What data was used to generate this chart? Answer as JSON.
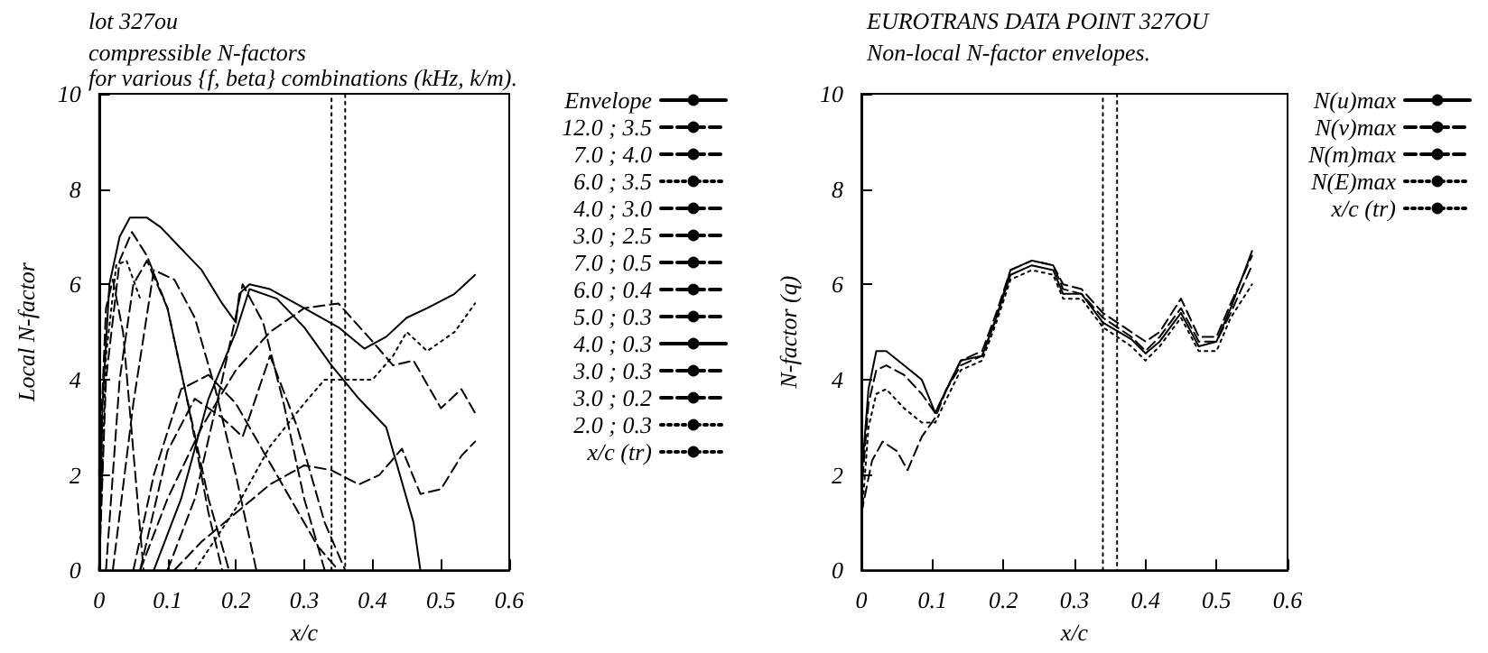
{
  "chart_data": [
    {
      "type": "line",
      "title": "lot 327ou",
      "subtitle": "compressible N-factors\nfor various {f, beta} combinations (kHz, k/m).",
      "xlabel": "x/c",
      "ylabel": "Local N-factor",
      "xlim": [
        0,
        0.6
      ],
      "ylim": [
        0,
        10
      ],
      "xticks": [
        0,
        0.1,
        0.2,
        0.3,
        0.4,
        0.5,
        0.6
      ],
      "yticks": [
        0,
        2,
        4,
        6,
        8,
        10
      ],
      "grid": false,
      "legend": "top right",
      "marker": "none",
      "series": [
        {
          "name": "Envelope",
          "color": "#000000",
          "line_style": "solid",
          "x": [
            0,
            0.005,
            0.015,
            0.03,
            0.045,
            0.07,
            0.09,
            0.11,
            0.13,
            0.15,
            0.18,
            0.2,
            0.205,
            0.22,
            0.25,
            0.3,
            0.35,
            0.388,
            0.42,
            0.45,
            0.48,
            0.52,
            0.55
          ],
          "values": [
            0,
            3.5,
            6,
            7.0,
            7.4,
            7.4,
            7.2,
            6.9,
            6.6,
            6.3,
            5.6,
            5.2,
            5.8,
            6.0,
            5.9,
            5.5,
            5.1,
            4.65,
            4.9,
            5.3,
            5.5,
            5.8,
            6.2
          ]
        },
        {
          "name": "12.0 ; 3.5",
          "color": "#000000",
          "line_style": "dashed",
          "x": [
            0,
            0.01,
            0.02,
            0.035,
            0.05,
            0.065
          ],
          "values": [
            2,
            5.5,
            6.1,
            5,
            2.5,
            0
          ]
        },
        {
          "name": "7.0 ; 4.0",
          "color": "#000000",
          "line_style": "dashed",
          "x": [
            0,
            0.01,
            0.03,
            0.048,
            0.07,
            0.1,
            0.13,
            0.16,
            0.19
          ],
          "values": [
            0,
            4,
            6.5,
            7.1,
            6.6,
            5.5,
            3.5,
            1.5,
            0
          ]
        },
        {
          "name": "6.0 ; 3.5",
          "color": "#000000",
          "line_style": "dotted",
          "x": [
            0,
            0.01,
            0.025,
            0.04,
            0.06
          ],
          "values": [
            0,
            4.5,
            6.4,
            6.5,
            5.7
          ]
        },
        {
          "name": "4.0 ; 3.0",
          "color": "#000000",
          "line_style": "dashed",
          "x": [
            0.01,
            0.03,
            0.05,
            0.07,
            0.1,
            0.13,
            0.16,
            0.18
          ],
          "values": [
            0,
            4,
            6,
            6.5,
            5.5,
            3.5,
            1.2,
            0
          ]
        },
        {
          "name": "3.0 ; 2.5",
          "color": "#000000",
          "line_style": "dashed",
          "x": [
            0.02,
            0.05,
            0.08,
            0.11,
            0.14,
            0.17,
            0.2,
            0.23
          ],
          "values": [
            0,
            3.5,
            6.3,
            6.1,
            5.3,
            3.8,
            2,
            0
          ]
        },
        {
          "name": "7.0 ; 0.5",
          "color": "#000000",
          "line_style": "dashed",
          "x": [
            0.1,
            0.14,
            0.18,
            0.21,
            0.24,
            0.27,
            0.3,
            0.33
          ],
          "values": [
            0,
            1.5,
            4,
            6.0,
            5.2,
            3.5,
            1.5,
            0
          ]
        },
        {
          "name": "6.0 ; 0.4",
          "color": "#000000",
          "line_style": "dashed",
          "x": [
            0.06,
            0.1,
            0.14,
            0.18,
            0.21,
            0.25,
            0.29,
            0.33,
            0.36
          ],
          "values": [
            0,
            2.5,
            3.6,
            3.2,
            2.8,
            4.5,
            3,
            1,
            0
          ]
        },
        {
          "name": "5.0 ; 0.3",
          "color": "#000000",
          "line_style": "dashed",
          "x": [
            0.05,
            0.08,
            0.12,
            0.16,
            0.2,
            0.24,
            0.28,
            0.32,
            0.35
          ],
          "values": [
            0,
            2.0,
            3.8,
            4.1,
            3.5,
            2.5,
            1.5,
            0.5,
            0
          ]
        },
        {
          "name": "4.0 ; 0.3",
          "color": "#000000",
          "line_style": "solid",
          "x": [
            0.08,
            0.12,
            0.16,
            0.2,
            0.22,
            0.26,
            0.3,
            0.34,
            0.38,
            0.42,
            0.46,
            0.47
          ],
          "values": [
            0,
            1.5,
            3.6,
            5.0,
            5.9,
            5.7,
            5.1,
            4.3,
            3.6,
            3.0,
            1.0,
            0
          ]
        },
        {
          "name": "3.0 ; 0.3",
          "color": "#000000",
          "line_style": "dashed",
          "x": [
            0.06,
            0.1,
            0.15,
            0.2,
            0.25,
            0.3,
            0.35,
            0.4,
            0.43,
            0.46,
            0.5,
            0.53,
            0.55
          ],
          "values": [
            0,
            1.5,
            3.0,
            4.2,
            5.0,
            5.5,
            5.6,
            4.8,
            4.3,
            4.4,
            3.4,
            3.8,
            3.3
          ]
        },
        {
          "name": "3.0 ; 0.2",
          "color": "#000000",
          "line_style": "dashed",
          "x": [
            0.11,
            0.15,
            0.2,
            0.25,
            0.3,
            0.34,
            0.38,
            0.41,
            0.443,
            0.47,
            0.5,
            0.53,
            0.55
          ],
          "values": [
            0,
            0.6,
            1.2,
            1.8,
            2.2,
            2.1,
            1.8,
            2.0,
            2.55,
            1.6,
            1.7,
            2.4,
            2.7
          ]
        },
        {
          "name": "2.0 ; 0.3",
          "color": "#000000",
          "line_style": "dotted",
          "x": [
            0.14,
            0.2,
            0.25,
            0.3,
            0.33,
            0.36,
            0.4,
            0.43,
            0.45,
            0.48,
            0.52,
            0.55
          ],
          "values": [
            0,
            1.3,
            2.6,
            3.5,
            4.0,
            4.0,
            4.0,
            4.5,
            5.0,
            4.6,
            5.0,
            5.6
          ]
        },
        {
          "name": "x/c (tr)",
          "color": "#000000",
          "line_style": "dotted",
          "x": [
            0.34,
            0.34,
            0.36,
            0.36
          ],
          "values": [
            0,
            10,
            10,
            0
          ]
        }
      ]
    },
    {
      "type": "line",
      "title": "EUROTRANS DATA POINT 327OU",
      "subtitle": "Non-local N-factor envelopes.",
      "xlabel": "x/c",
      "ylabel": "N-factor (q)",
      "xlim": [
        0,
        0.6
      ],
      "ylim": [
        0,
        10
      ],
      "xticks": [
        0,
        0.1,
        0.2,
        0.3,
        0.4,
        0.5,
        0.6
      ],
      "yticks": [
        0,
        2,
        4,
        6,
        8,
        10
      ],
      "grid": false,
      "legend": "top right",
      "marker": "none",
      "series": [
        {
          "name": "N(u)max",
          "color": "#000000",
          "line_style": "solid",
          "x": [
            0,
            0.01,
            0.021,
            0.035,
            0.06,
            0.085,
            0.104,
            0.12,
            0.14,
            0.17,
            0.19,
            0.21,
            0.24,
            0.27,
            0.284,
            0.31,
            0.34,
            0.38,
            0.4,
            0.42,
            0.45,
            0.475,
            0.5,
            0.52,
            0.55
          ],
          "values": [
            1.9,
            3.8,
            4.6,
            4.6,
            4.3,
            4.0,
            3.3,
            3.8,
            4.4,
            4.5,
            5.3,
            6.2,
            6.4,
            6.3,
            5.8,
            5.8,
            5.2,
            4.85,
            4.55,
            4.8,
            5.4,
            4.7,
            4.8,
            5.5,
            6.7
          ]
        },
        {
          "name": "N(v)max",
          "color": "#000000",
          "line_style": "dashed",
          "x": [
            0,
            0.015,
            0.03,
            0.05,
            0.065,
            0.085,
            0.104,
            0.12,
            0.14,
            0.17,
            0.19,
            0.21,
            0.24,
            0.27,
            0.284,
            0.31,
            0.34,
            0.38,
            0.4,
            0.42,
            0.45,
            0.475,
            0.5,
            0.52,
            0.55
          ],
          "values": [
            1.2,
            2.3,
            2.7,
            2.5,
            2.1,
            2.8,
            3.2,
            3.8,
            4.4,
            4.6,
            5.4,
            6.3,
            6.5,
            6.4,
            6.0,
            5.9,
            5.4,
            5.0,
            4.8,
            5.0,
            5.7,
            4.9,
            4.9,
            5.6,
            6.6
          ]
        },
        {
          "name": "N(m)max",
          "color": "#000000",
          "line_style": "dashed",
          "x": [
            0,
            0.01,
            0.021,
            0.035,
            0.06,
            0.085,
            0.104,
            0.12,
            0.14,
            0.17,
            0.19,
            0.21,
            0.24,
            0.27,
            0.284,
            0.31,
            0.34,
            0.38,
            0.4,
            0.42,
            0.45,
            0.475,
            0.5,
            0.52,
            0.55
          ],
          "values": [
            1.6,
            3.5,
            4.2,
            4.3,
            4.1,
            3.7,
            3.3,
            3.8,
            4.3,
            4.5,
            5.3,
            6.3,
            6.5,
            6.4,
            5.9,
            5.8,
            5.3,
            4.9,
            4.6,
            4.9,
            5.5,
            4.8,
            4.8,
            5.4,
            6.4
          ]
        },
        {
          "name": "N(E)max",
          "color": "#000000",
          "line_style": "dotted",
          "x": [
            0,
            0.01,
            0.021,
            0.035,
            0.06,
            0.085,
            0.104,
            0.12,
            0.14,
            0.17,
            0.19,
            0.21,
            0.24,
            0.27,
            0.284,
            0.31,
            0.34,
            0.38,
            0.4,
            0.42,
            0.45,
            0.475,
            0.5,
            0.52,
            0.55
          ],
          "values": [
            1.0,
            3.0,
            3.7,
            3.8,
            3.4,
            3.1,
            3.1,
            3.6,
            4.2,
            4.4,
            5.2,
            6.1,
            6.3,
            6.2,
            5.7,
            5.7,
            5.1,
            4.7,
            4.4,
            4.7,
            5.3,
            4.6,
            4.6,
            5.3,
            6.0
          ]
        },
        {
          "name": "x/c (tr)",
          "color": "#000000",
          "line_style": "dotted",
          "x": [
            0.34,
            0.34,
            0.36,
            0.36
          ],
          "values": [
            0,
            10,
            10,
            0
          ]
        }
      ]
    }
  ]
}
